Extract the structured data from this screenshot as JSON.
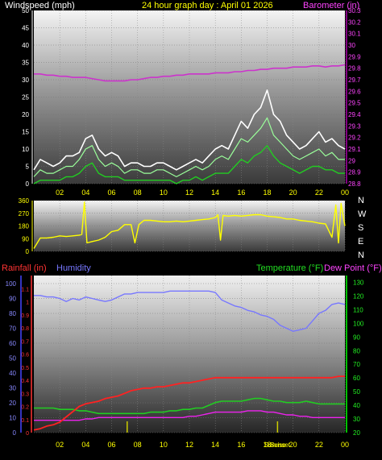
{
  "header": {
    "left_title": "Windspeed (mph)",
    "center_title": "24 hour graph day : April 01 2026",
    "right_title": "Barometer (in)"
  },
  "colors": {
    "background": "#000000",
    "windspeed_gust": "#ffffff",
    "windspeed_avg": "#22cc22",
    "windspeed_mid": "#9aff9a",
    "barometer": "#cc33cc",
    "direction": "#ffff00",
    "rainfall": "#ff2222",
    "humidity": "#7777ff",
    "temperature": "#22cc22",
    "dewpoint": "#ee22ee",
    "yellow_axis": "#ffff00",
    "green_axis": "#00ff00",
    "magenta_axis": "#ff00ff",
    "blue_axis": "#4444ff",
    "red_axis": "#ff3333",
    "marker": "#cccc00"
  },
  "chart_data": [
    {
      "id": "wind",
      "type": "line",
      "title": "24 hour graph day : April 01 2026",
      "ylabel_left": "Windspeed (mph)",
      "ylabel_right": "Barometer (in)",
      "x_tick_labels": [
        "02",
        "04",
        "06",
        "08",
        "10",
        "12",
        "14",
        "16",
        "18",
        "20",
        "22",
        "00"
      ],
      "ylim_left": [
        0,
        50
      ],
      "yticks_left": [
        "0",
        "5",
        "10",
        "15",
        "20",
        "25",
        "30",
        "35",
        "40",
        "45",
        "50"
      ],
      "ylim_right": [
        28.8,
        30.3
      ],
      "yticks_right": [
        "28.8",
        "28.9",
        "29",
        "29.1",
        "29.2",
        "29.3",
        "29.4",
        "29.5",
        "29.6",
        "29.7",
        "29.8",
        "29.9",
        "30",
        "30.1",
        "30.2",
        "30.3"
      ],
      "x_hours": [
        0,
        0.5,
        1,
        1.5,
        2,
        2.5,
        3,
        3.5,
        4,
        4.5,
        5,
        5.5,
        6,
        6.5,
        7,
        7.5,
        8,
        8.5,
        9,
        9.5,
        10,
        10.5,
        11,
        11.5,
        12,
        12.5,
        13,
        13.5,
        14,
        14.5,
        15,
        15.5,
        16,
        16.5,
        17,
        17.5,
        18,
        18.5,
        19,
        19.5,
        20,
        20.5,
        21,
        21.5,
        22,
        22.5,
        23,
        23.5,
        24
      ],
      "series": [
        {
          "key": "gust",
          "values": [
            4,
            7,
            6,
            5,
            6,
            8,
            8,
            9,
            13,
            14,
            10,
            8,
            9,
            8,
            5,
            6,
            6,
            5,
            5,
            6,
            6,
            5,
            4,
            5,
            6,
            7,
            6,
            8,
            10,
            11,
            10,
            14,
            18,
            16,
            20,
            22,
            27,
            20,
            18,
            14,
            12,
            10,
            11,
            13,
            15,
            12,
            13,
            11,
            10
          ]
        },
        {
          "key": "avg",
          "values": [
            2,
            4,
            3,
            3,
            4,
            5,
            5,
            7,
            10,
            11,
            7,
            5,
            6,
            5,
            3,
            4,
            4,
            3,
            3,
            4,
            4,
            3,
            2,
            3,
            4,
            5,
            4,
            5,
            7,
            8,
            7,
            10,
            13,
            12,
            14,
            16,
            19,
            14,
            12,
            10,
            8,
            7,
            8,
            9,
            10,
            8,
            9,
            7,
            7
          ]
        },
        {
          "key": "low",
          "values": [
            0,
            1,
            1,
            1,
            1,
            2,
            2,
            3,
            5,
            6,
            3,
            2,
            2,
            2,
            1,
            1,
            1,
            1,
            1,
            1,
            1,
            1,
            0,
            1,
            1,
            2,
            1,
            2,
            3,
            3,
            3,
            5,
            7,
            6,
            8,
            9,
            11,
            8,
            6,
            5,
            4,
            3,
            4,
            5,
            5,
            4,
            4,
            3,
            3
          ]
        },
        {
          "key": "barometer",
          "values": [
            29.75,
            29.75,
            29.74,
            29.74,
            29.73,
            29.73,
            29.72,
            29.72,
            29.72,
            29.71,
            29.7,
            29.69,
            29.69,
            29.69,
            29.69,
            29.7,
            29.7,
            29.71,
            29.72,
            29.72,
            29.73,
            29.73,
            29.74,
            29.74,
            29.75,
            29.75,
            29.75,
            29.75,
            29.76,
            29.76,
            29.76,
            29.77,
            29.77,
            29.78,
            29.78,
            29.79,
            29.79,
            29.8,
            29.8,
            29.8,
            29.81,
            29.81,
            29.81,
            29.82,
            29.82,
            29.81,
            29.82,
            29.82,
            29.83
          ]
        }
      ]
    },
    {
      "id": "direction",
      "type": "line",
      "ylim": [
        0,
        360
      ],
      "yticks": [
        "0",
        "90",
        "180",
        "270",
        "360"
      ],
      "compass_labels": [
        "N",
        "W",
        "S",
        "E",
        "N"
      ],
      "x_hours": [
        0,
        0.5,
        1,
        1.5,
        2,
        2.5,
        3,
        3.5,
        3.7,
        3.9,
        4.1,
        4.5,
        5,
        5.5,
        6,
        6.5,
        7,
        7.5,
        7.8,
        8.1,
        8.5,
        9,
        9.5,
        10,
        10.5,
        11,
        11.5,
        12,
        12.5,
        13,
        13.5,
        14,
        14.2,
        14.4,
        14.6,
        15,
        15.5,
        16,
        16.5,
        17,
        17.5,
        18,
        18.5,
        19,
        19.5,
        20,
        20.5,
        21,
        21.5,
        22,
        22.5,
        23,
        23.3,
        23.5,
        23.7,
        24
      ],
      "values": [
        20,
        95,
        95,
        100,
        110,
        105,
        110,
        115,
        120,
        350,
        60,
        70,
        80,
        100,
        140,
        150,
        190,
        190,
        60,
        190,
        220,
        220,
        215,
        210,
        210,
        215,
        210,
        215,
        220,
        225,
        230,
        240,
        260,
        80,
        255,
        250,
        255,
        250,
        255,
        260,
        260,
        250,
        245,
        240,
        230,
        230,
        220,
        215,
        210,
        200,
        195,
        100,
        330,
        60,
        340,
        180
      ]
    },
    {
      "id": "rain_humidity_temp",
      "type": "line",
      "ylabel_rain": "Rainfall (in)",
      "ylabel_humidity": "Humidity",
      "ylabel_temp": "Temperature (°F)",
      "ylabel_dew": "Dew Point (°F)",
      "x_tick_labels": [
        "02",
        "04",
        "06",
        "08",
        "10",
        "12",
        "14",
        "16",
        "18",
        "20",
        "22",
        "00"
      ],
      "ylim_humidity": [
        0,
        100
      ],
      "yticks_humidity": [
        "0",
        "10",
        "20",
        "30",
        "40",
        "50",
        "60",
        "70",
        "80",
        "90",
        "100"
      ],
      "ylim_rain": [
        0,
        1.2
      ],
      "yticks_rain": [
        "0",
        "0.1",
        "0.2",
        "0.3",
        "0.4",
        "0.5",
        "0.6",
        "0.7",
        "0.8",
        "0.9",
        "1",
        "1.1"
      ],
      "ylim_temp": [
        20,
        135
      ],
      "yticks_temp": [
        "20",
        "30",
        "40",
        "50",
        "60",
        "70",
        "80",
        "90",
        "100",
        "110",
        "120",
        "130"
      ],
      "markers": [
        "Sunrise",
        "Sunset"
      ],
      "x_hours": [
        0,
        0.5,
        1,
        1.5,
        2,
        2.5,
        3,
        3.5,
        4,
        4.5,
        5,
        5.5,
        6,
        6.5,
        7,
        7.5,
        8,
        8.5,
        9,
        9.5,
        10,
        10.5,
        11,
        11.5,
        12,
        12.5,
        13,
        13.5,
        14,
        14.5,
        15,
        15.5,
        16,
        16.5,
        17,
        17.5,
        18,
        18.5,
        19,
        19.5,
        20,
        20.5,
        21,
        21.5,
        22,
        22.5,
        23,
        23.5,
        24
      ],
      "series": [
        {
          "key": "rainfall",
          "values": [
            0.02,
            0.03,
            0.05,
            0.06,
            0.08,
            0.12,
            0.16,
            0.2,
            0.22,
            0.23,
            0.24,
            0.26,
            0.27,
            0.28,
            0.3,
            0.32,
            0.33,
            0.34,
            0.34,
            0.35,
            0.35,
            0.36,
            0.37,
            0.38,
            0.38,
            0.39,
            0.4,
            0.41,
            0.42,
            0.42,
            0.42,
            0.42,
            0.42,
            0.42,
            0.42,
            0.42,
            0.42,
            0.42,
            0.42,
            0.42,
            0.42,
            0.42,
            0.42,
            0.42,
            0.42,
            0.42,
            0.42,
            0.43,
            0.43
          ]
        },
        {
          "key": "humidity",
          "values": [
            92,
            92,
            91,
            91,
            90,
            88,
            90,
            89,
            91,
            90,
            89,
            88,
            89,
            91,
            93,
            93,
            94,
            94,
            94,
            94,
            94,
            95,
            95,
            95,
            95,
            95,
            95,
            95,
            94,
            89,
            87,
            85,
            84,
            82,
            81,
            79,
            78,
            76,
            72,
            70,
            68,
            69,
            70,
            75,
            80,
            82,
            86,
            87,
            86
          ]
        },
        {
          "key": "temperature",
          "values": [
            38,
            38,
            38,
            38,
            37,
            37,
            37,
            36,
            36,
            35,
            34,
            34,
            34,
            34,
            34,
            34,
            34,
            34,
            35,
            35,
            35,
            36,
            36,
            37,
            37,
            38,
            38,
            40,
            42,
            43,
            43,
            43,
            43,
            44,
            45,
            45,
            44,
            43,
            43,
            42,
            42,
            42,
            43,
            42,
            41,
            41,
            41,
            41,
            41
          ]
        },
        {
          "key": "dewpoint",
          "values": [
            29,
            29,
            29,
            29,
            29,
            29,
            29,
            29,
            30,
            30,
            31,
            31,
            31,
            31,
            31,
            31,
            31,
            31,
            31,
            31,
            31,
            31,
            31,
            31,
            32,
            32,
            33,
            34,
            35,
            35,
            35,
            35,
            35,
            36,
            36,
            36,
            35,
            35,
            34,
            33,
            33,
            32,
            32,
            31,
            31,
            31,
            31,
            31,
            31
          ]
        }
      ]
    }
  ],
  "lower_header": {
    "rainfall_label": "Rainfall (in)",
    "humidity_label": "Humidity",
    "temperature_label": "Temperature (°F)",
    "dewpoint_label": "Dew Point (°F)"
  }
}
